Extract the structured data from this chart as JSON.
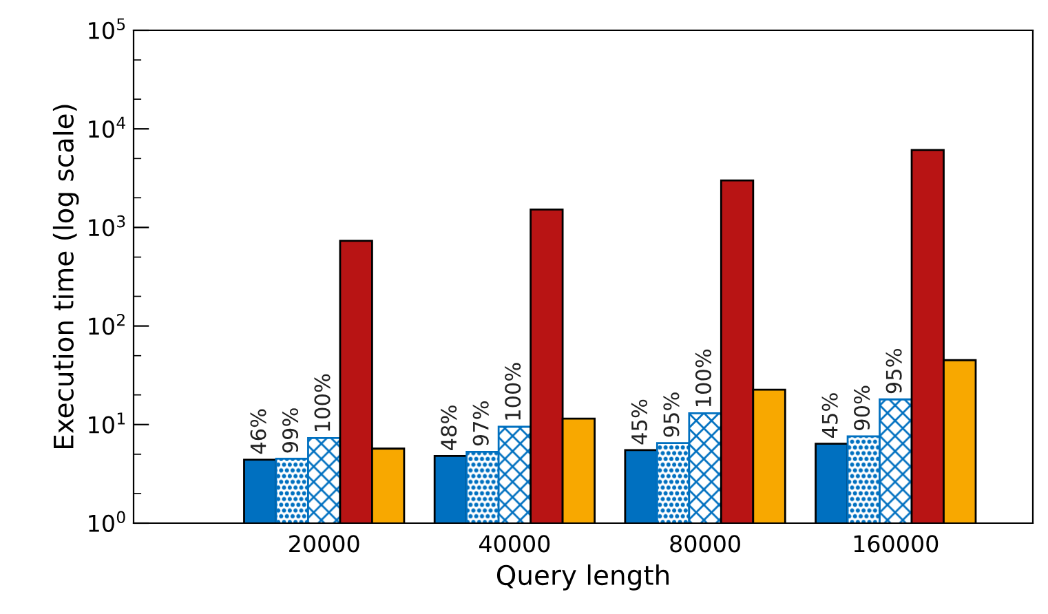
{
  "chart_data": {
    "type": "bar",
    "xlabel": "Query length",
    "ylabel": "Execution time (log scale)",
    "log": "y",
    "categories": [
      "20000",
      "40000",
      "80000",
      "160000"
    ],
    "series": [
      {
        "color": "#0070c0",
        "values": [
          4.4,
          4.8,
          5.5,
          6.4
        ]
      },
      {
        "color": "#0070c0",
        "values": [
          4.5,
          5.3,
          6.5,
          7.6
        ]
      },
      {
        "color": "#0070c0",
        "values": [
          7.3,
          9.5,
          13,
          18
        ]
      },
      {
        "color": "#b81414",
        "values": [
          730,
          1520,
          3000,
          6100
        ]
      },
      {
        "color": "#f8a800",
        "values": [
          5.7,
          11.5,
          22.6,
          45
        ]
      }
    ],
    "ylim": [
      1,
      100000
    ],
    "yticks": [
      {
        "value": 1,
        "label": "10$^{0}$"
      },
      {
        "value": 10,
        "label": "10$^{1}$"
      },
      {
        "value": 100,
        "label": "10$^{2}$"
      },
      {
        "value": 1000,
        "label": "10$^{3}$"
      },
      {
        "value": 10000,
        "label": "10$^{4}$"
      },
      {
        "value": 100000,
        "label": "10$^{5}$"
      }
    ],
    "annotations": [
      "46%",
      "99%",
      "100%",
      "48%",
      "97%",
      "100%",
      "45%",
      "95%",
      "100%",
      "45%",
      "90%",
      "95%"
    ],
    "grid": false,
    "legend": false
  }
}
